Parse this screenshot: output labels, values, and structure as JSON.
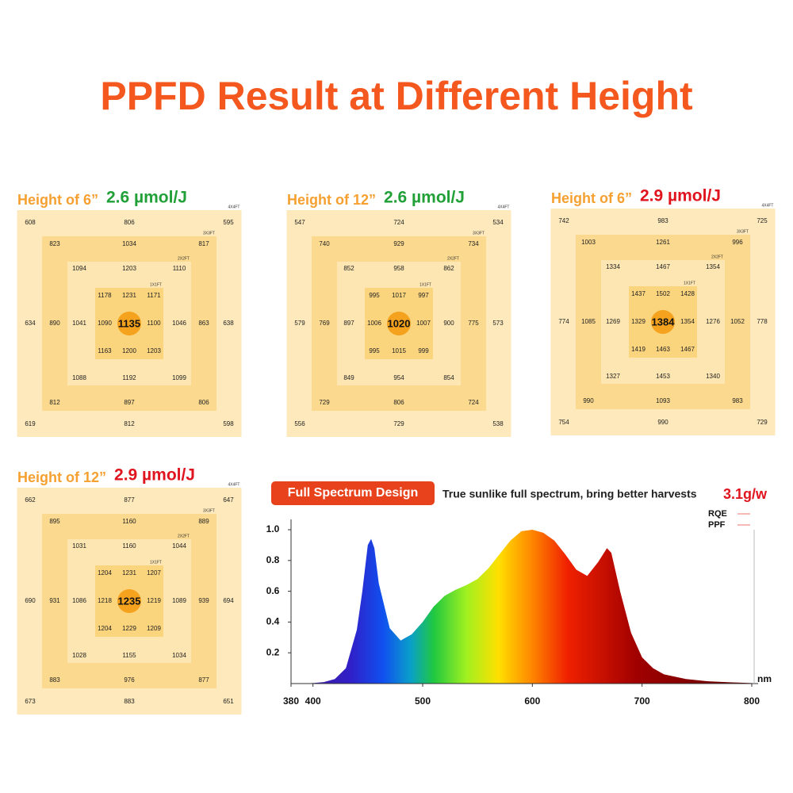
{
  "title": "PPFD Result at Different Height",
  "area_labels": [
    "4X4FT",
    "3X3FT",
    "2X2FT",
    "1X1FT"
  ],
  "panels": [
    {
      "height_label": "Height of 6”",
      "efficiency": "2.6 µmol/J",
      "efficiency_color": "#21a038",
      "rings": [
        [
          608,
          806,
          595,
          634,
          638,
          619,
          812,
          598
        ],
        [
          823,
          1034,
          817,
          890,
          863,
          812,
          897,
          806
        ],
        [
          1094,
          1203,
          1110,
          1041,
          1046,
          1088,
          1192,
          1099
        ],
        [
          1178,
          1231,
          1171,
          1090,
          1100,
          1163,
          1200,
          1203
        ]
      ],
      "center": 1135
    },
    {
      "height_label": "Height of 12”",
      "efficiency": "2.6 µmol/J",
      "efficiency_color": "#21a038",
      "rings": [
        [
          547,
          724,
          534,
          579,
          573,
          556,
          729,
          538
        ],
        [
          740,
          929,
          734,
          769,
          775,
          729,
          806,
          724
        ],
        [
          852,
          958,
          862,
          897,
          900,
          849,
          954,
          854
        ],
        [
          995,
          1017,
          997,
          1006,
          1007,
          995,
          1015,
          999
        ]
      ],
      "center": 1020
    },
    {
      "height_label": "Height of 6”",
      "efficiency": "2.9 µmol/J",
      "efficiency_color": "#e0141e",
      "rings": [
        [
          742,
          983,
          725,
          774,
          778,
          754,
          990,
          729
        ],
        [
          1003,
          1261,
          996,
          1085,
          1052,
          990,
          1093,
          983
        ],
        [
          1334,
          1467,
          1354,
          1269,
          1276,
          1327,
          1453,
          1340
        ],
        [
          1437,
          1502,
          1428,
          1329,
          1354,
          1419,
          1463,
          1467
        ]
      ],
      "center": 1384
    },
    {
      "height_label": "Height of 12”",
      "efficiency": "2.9 µmol/J",
      "efficiency_color": "#e0141e",
      "rings": [
        [
          662,
          877,
          647,
          690,
          694,
          673,
          883,
          651
        ],
        [
          895,
          1160,
          889,
          931,
          939,
          883,
          976,
          877
        ],
        [
          1031,
          1160,
          1044,
          1086,
          1089,
          1028,
          1155,
          1034
        ],
        [
          1204,
          1231,
          1207,
          1218,
          1219,
          1204,
          1229,
          1209
        ]
      ],
      "center": 1235
    }
  ],
  "spectrum_banner": "Full Spectrum Design",
  "spectrum_caption": "True sunlike full spectrum, bring better harvests",
  "yield": "3.1g/w",
  "chart_data": {
    "type": "area",
    "x": [
      380,
      400,
      410,
      420,
      430,
      440,
      445,
      450,
      453,
      456,
      460,
      470,
      480,
      490,
      500,
      510,
      520,
      530,
      540,
      550,
      560,
      570,
      580,
      590,
      600,
      610,
      620,
      630,
      640,
      650,
      660,
      668,
      672,
      680,
      690,
      700,
      710,
      720,
      740,
      760,
      780,
      800
    ],
    "values": [
      0,
      0.003,
      0.01,
      0.03,
      0.1,
      0.35,
      0.6,
      0.9,
      0.94,
      0.88,
      0.65,
      0.36,
      0.28,
      0.32,
      0.4,
      0.5,
      0.57,
      0.61,
      0.64,
      0.68,
      0.75,
      0.84,
      0.93,
      0.99,
      1.0,
      0.98,
      0.93,
      0.84,
      0.74,
      0.7,
      0.79,
      0.88,
      0.85,
      0.6,
      0.33,
      0.17,
      0.1,
      0.06,
      0.03,
      0.015,
      0.008,
      0.003
    ],
    "xlim": [
      380,
      800
    ],
    "ylim": [
      0,
      1
    ],
    "xticks": [
      380,
      400,
      500,
      600,
      700,
      800
    ],
    "yticks": [
      0.2,
      0.4,
      0.6,
      0.8,
      {
        "value": 1,
        "label": "1.0"
      }
    ],
    "x_unit": "nm",
    "legend": [
      "RQE",
      "PPF"
    ],
    "legend_color": "#f4a0a0"
  }
}
